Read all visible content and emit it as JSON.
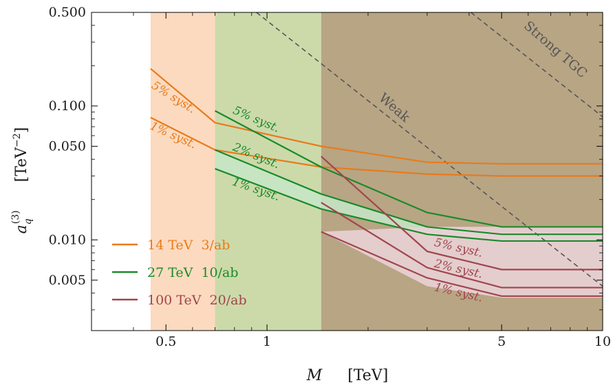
{
  "chart_data": {
    "type": "line",
    "x_scale": "log",
    "y_scale": "log",
    "xlim": [
      0.3,
      10
    ],
    "ylim": [
      0.0021,
      0.5
    ],
    "xlabel": {
      "var": "M",
      "unit": "[TeV]"
    },
    "ylabel": {
      "var_base": "a",
      "var_sup": "(3)",
      "var_sub": "q",
      "unit": "[TeV",
      "unit_exp": "−2",
      "unit_close": "]"
    },
    "x_ticks": [
      {
        "value": 0.5,
        "label": "0.5"
      },
      {
        "value": 1,
        "label": "1"
      },
      {
        "value": 5,
        "label": "5"
      },
      {
        "value": 10,
        "label": "10"
      }
    ],
    "y_ticks": [
      {
        "value": 0.5,
        "label": "0.500"
      },
      {
        "value": 0.1,
        "label": "0.100"
      },
      {
        "value": 0.05,
        "label": "0.050"
      },
      {
        "value": 0.01,
        "label": "0.010"
      },
      {
        "value": 0.005,
        "label": "0.005"
      }
    ],
    "colors": {
      "14": "#e87b1c",
      "27": "#1a8a2a",
      "100": "#a0454e",
      "frame": "#000000",
      "dashed": "#555555"
    },
    "shaded_regions": [
      {
        "x_from": 0.45,
        "x_to": 0.7,
        "color": "#fbd4b4",
        "opacity": 0.85
      },
      {
        "x_from": 0.7,
        "x_to": 1.45,
        "color": "#c6d6a1",
        "opacity": 0.9
      },
      {
        "x_from": 1.45,
        "x_to": 10,
        "color": "#b8a584",
        "opacity": 1
      }
    ],
    "lower_fills": [
      {
        "color": "#c5e6c8",
        "opacity": 0.85,
        "x": [
          0.7,
          1.45,
          3,
          5,
          10
        ],
        "y_top": [
          0.047,
          0.022,
          0.0125,
          0.011,
          0.011
        ],
        "y_bottom": [
          0.047,
          0.022,
          0.0125,
          0.011,
          0.011
        ]
      },
      {
        "color": "#e9d2d5",
        "opacity": 0.9,
        "x": [
          1.45,
          3,
          5,
          10
        ],
        "y_top": [
          0.0115,
          0.0125,
          0.0125,
          0.0125
        ],
        "y_bottom": [
          0.0115,
          0.0045,
          0.0037,
          0.0037
        ]
      }
    ],
    "series": [
      {
        "name": "14 TeV  3/ab",
        "group": "14",
        "syst": "5% syst.",
        "x": [
          0.45,
          0.7,
          1.45,
          3,
          5,
          10
        ],
        "y": [
          0.19,
          0.075,
          0.05,
          0.038,
          0.037,
          0.037
        ]
      },
      {
        "name": "14 TeV  3/ab",
        "group": "14",
        "syst": "1% syst.",
        "x": [
          0.45,
          0.7,
          1.45,
          3,
          5,
          10
        ],
        "y": [
          0.082,
          0.047,
          0.035,
          0.031,
          0.03,
          0.03
        ]
      },
      {
        "name": "27 TeV  10/ab",
        "group": "27",
        "syst": "5% syst.",
        "x": [
          0.7,
          1.45,
          3,
          5,
          10
        ],
        "y": [
          0.092,
          0.035,
          0.016,
          0.0125,
          0.0125
        ]
      },
      {
        "name": "27 TeV  10/ab",
        "group": "27",
        "syst": "2% syst.",
        "x": [
          0.7,
          1.45,
          3,
          5,
          10
        ],
        "y": [
          0.047,
          0.022,
          0.0125,
          0.011,
          0.011
        ]
      },
      {
        "name": "27 TeV  10/ab",
        "group": "27",
        "syst": "1% syst.",
        "x": [
          0.7,
          1.45,
          3,
          5,
          10
        ],
        "y": [
          0.034,
          0.017,
          0.011,
          0.0098,
          0.0098
        ]
      },
      {
        "name": "100 TeV  20/ab",
        "group": "100",
        "syst": "5% syst.",
        "x": [
          1.45,
          3,
          5,
          10
        ],
        "y": [
          0.042,
          0.0082,
          0.006,
          0.006
        ]
      },
      {
        "name": "100 TeV  20/ab",
        "group": "100",
        "syst": "2% syst.",
        "x": [
          1.45,
          3,
          5,
          10
        ],
        "y": [
          0.019,
          0.0062,
          0.0044,
          0.0044
        ]
      },
      {
        "name": "100 TeV  20/ab",
        "group": "100",
        "syst": "1% syst.",
        "x": [
          1.45,
          3,
          5,
          10
        ],
        "y": [
          0.0115,
          0.0052,
          0.0038,
          0.0038
        ]
      }
    ],
    "series_labels": [
      {
        "text": "5% syst.",
        "group": "14",
        "x": 0.52,
        "y": 0.11,
        "angle": 32
      },
      {
        "text": "1% syst.",
        "group": "14",
        "x": 0.52,
        "y": 0.057,
        "angle": 24
      },
      {
        "text": "5% syst.",
        "group": "27",
        "x": 0.92,
        "y": 0.075,
        "angle": 23
      },
      {
        "text": "2% syst.",
        "group": "27",
        "x": 0.92,
        "y": 0.04,
        "angle": 22
      },
      {
        "text": "1% syst.",
        "group": "27",
        "x": 0.92,
        "y": 0.0225,
        "angle": 19
      },
      {
        "text": "5% syst.",
        "group": "100",
        "x": 3.7,
        "y": 0.0082,
        "angle": 13
      },
      {
        "text": "2% syst.",
        "group": "100",
        "x": 3.7,
        "y": 0.0057,
        "angle": 13
      },
      {
        "text": "1% syst.",
        "group": "100",
        "x": 3.7,
        "y": 0.0038,
        "angle": 13
      }
    ],
    "dashed_lines": [
      {
        "label": "Weak",
        "x": [
          0.93,
          10
        ],
        "y": [
          0.5,
          0.0045
        ],
        "label_x": 2.35,
        "label_y": 0.092,
        "angle": 41
      },
      {
        "label": "Strong TGC",
        "x": [
          4.05,
          10
        ],
        "y": [
          0.5,
          0.083
        ],
        "label_x": 7.1,
        "label_y": 0.25,
        "angle": 41
      }
    ],
    "legend": {
      "position": "bottom-left",
      "entries": [
        {
          "label": "14 TeV  3/ab",
          "group": "14"
        },
        {
          "label": "27 TeV  10/ab",
          "group": "27"
        },
        {
          "label": "100 TeV  20/ab",
          "group": "100"
        }
      ]
    }
  }
}
